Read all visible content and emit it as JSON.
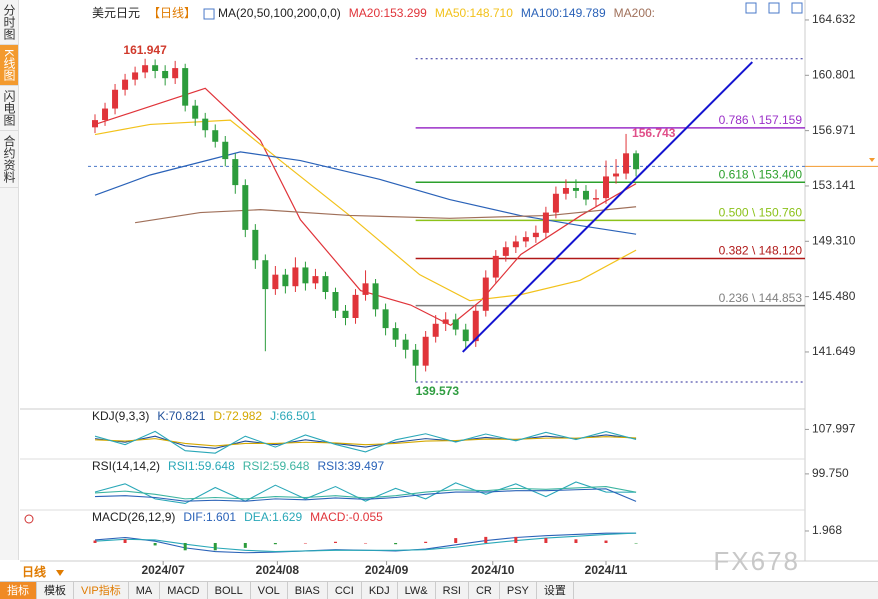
{
  "sidebar": [
    "分时图",
    "K线图",
    "闪电图",
    "合约资料"
  ],
  "period_button": "日线",
  "toolbar": [
    "指标",
    "模板",
    "VIP指标",
    "MA",
    "MACD",
    "BOLL",
    "VOL",
    "BIAS",
    "CCI",
    "KDJ",
    "LW&",
    "RSI",
    "CR",
    "PSY",
    "设置"
  ],
  "watermark": "FX678",
  "chart_data": [
    {
      "type": "candlestick",
      "title": "美元日元",
      "subtitle": "【日线】",
      "indicator": "MA(20,50,100,200,0,0)",
      "up_color": "#e0343a",
      "down_color": "#2c9c3c",
      "open": [
        157.2,
        157.7,
        158.5,
        159.8,
        160.5,
        161.0,
        161.5,
        161.1,
        160.6,
        161.3,
        158.7,
        157.8,
        157.0,
        156.2,
        155.0,
        153.2,
        150.1,
        148.0,
        146.0,
        147.0,
        146.2,
        147.5,
        146.4,
        146.9,
        145.8,
        144.5,
        144.0,
        145.6,
        146.4,
        144.6,
        143.3,
        142.5,
        141.8,
        140.7,
        142.7,
        143.6,
        143.9,
        143.2,
        142.4,
        144.5,
        146.8,
        148.3,
        148.9,
        149.3,
        149.6,
        149.9,
        151.3,
        152.6,
        153.0,
        152.8,
        152.2,
        152.3,
        153.8,
        154.0,
        155.4
      ],
      "high": [
        158.1,
        158.9,
        160.2,
        160.9,
        161.4,
        161.947,
        161.9,
        161.5,
        161.8,
        161.6,
        159.1,
        158.2,
        157.4,
        156.6,
        155.4,
        153.6,
        150.5,
        148.4,
        147.6,
        147.4,
        148.2,
        147.9,
        147.4,
        147.2,
        146.1,
        144.9,
        146.0,
        147.3,
        146.7,
        145.0,
        143.7,
        142.9,
        142.2,
        143.1,
        144.2,
        144.4,
        144.3,
        143.6,
        144.9,
        147.3,
        148.7,
        149.3,
        149.7,
        150.0,
        150.4,
        151.7,
        153.1,
        153.6,
        153.6,
        153.2,
        152.9,
        154.9,
        155.0,
        156.743,
        155.6
      ],
      "low": [
        156.8,
        157.3,
        158.1,
        159.4,
        160.1,
        160.6,
        160.6,
        160.1,
        160.2,
        158.3,
        157.3,
        156.5,
        155.8,
        154.5,
        152.6,
        149.6,
        147.4,
        141.7,
        145.6,
        145.7,
        145.8,
        145.9,
        146.0,
        145.3,
        144.0,
        143.5,
        143.6,
        145.2,
        144.1,
        142.8,
        142.0,
        141.2,
        139.573,
        140.3,
        142.3,
        143.1,
        142.8,
        141.9,
        142.0,
        144.1,
        146.4,
        147.9,
        148.5,
        148.9,
        149.2,
        149.5,
        150.9,
        152.2,
        152.3,
        151.8,
        151.7,
        151.9,
        153.3,
        153.6,
        153.8
      ],
      "close": [
        157.7,
        158.5,
        159.8,
        160.5,
        161.0,
        161.5,
        161.1,
        160.6,
        161.3,
        158.7,
        157.8,
        157.0,
        156.2,
        155.0,
        153.2,
        150.1,
        148.0,
        146.0,
        147.0,
        146.2,
        147.5,
        146.4,
        146.9,
        145.8,
        144.5,
        144.0,
        145.6,
        146.4,
        144.6,
        143.3,
        142.5,
        141.8,
        140.7,
        142.7,
        143.6,
        143.9,
        143.2,
        142.4,
        144.5,
        146.8,
        148.3,
        148.9,
        149.3,
        149.6,
        149.9,
        151.3,
        152.6,
        153.0,
        152.8,
        152.2,
        152.3,
        153.8,
        154.0,
        155.4,
        154.3
      ],
      "series": [
        {
          "name": "MA20:153.299",
          "color": "#e0343a",
          "x": [
            0,
            11,
            16.5,
            20.5,
            26.5,
            31.5,
            35.5,
            38.5,
            42.5,
            48.5,
            54
          ],
          "values": [
            157.4,
            159.9,
            156.3,
            150.8,
            145.9,
            144.9,
            143.5,
            145.2,
            148.4,
            151.1,
            153.3
          ]
        },
        {
          "name": "MA50:148.710",
          "color": "#f2c21b",
          "x": [
            0,
            5.5,
            13.5,
            18.5,
            25.4,
            32.4,
            37.4,
            42.4,
            48.4,
            54
          ],
          "values": [
            156.7,
            157.4,
            157.7,
            154.9,
            151.1,
            147.0,
            145.2,
            145.6,
            146.6,
            148.7
          ]
        },
        {
          "name": "MA100:149.789",
          "color": "#2a62b8",
          "x": [
            0,
            5.5,
            14.5,
            20.5,
            28.4,
            35.4,
            42.4,
            48.4,
            54
          ],
          "values": [
            152.5,
            153.9,
            155.5,
            154.9,
            153.6,
            152.2,
            151.1,
            150.4,
            149.8
          ]
        },
        {
          "name": "MA200:",
          "color": "#a0705a",
          "x": [
            4,
            10.5,
            16.5,
            25.4,
            35.4,
            45.4,
            54
          ],
          "values": [
            150.6,
            151.3,
            151.5,
            151.1,
            150.9,
            151.1,
            151.7
          ]
        }
      ],
      "xlim": [
        -0.7,
        70.86
      ],
      "xticks": [
        {
          "value": 6.8,
          "label": "2024/07"
        },
        {
          "value": 18.2,
          "label": "2024/08"
        },
        {
          "value": 29.1,
          "label": "2024/09"
        },
        {
          "value": 39.7,
          "label": "2024/10"
        },
        {
          "value": 51,
          "label": "2024/11"
        }
      ],
      "ylim": [
        137.77,
        165.46
      ],
      "yticks": [
        164.632,
        160.801,
        156.971,
        153.141,
        {
          "value": 149.31,
          "label": "149.310"
        },
        {
          "value": 145.48,
          "label": "145.480"
        },
        141.649
      ],
      "fib": {
        "from_x": 32,
        "bounds": [
          161.947,
          139.573
        ],
        "bounds_color": "#2a2a9a",
        "levels": [
          {
            "value": 157.159,
            "label": "0.786 \\ 157.159",
            "color": "#9b30c8"
          },
          {
            "value": 153.4,
            "label": "0.618 \\ 153.400",
            "color": "#2ca02c"
          },
          {
            "value": 150.76,
            "label": "0.500 \\ 150.760",
            "color": "#8cc21a"
          },
          {
            "value": 148.12,
            "label": "0.382 \\ 148.120",
            "color": "#b01818"
          },
          {
            "value": 144.853,
            "label": "0.236 \\ 144.853",
            "color": "#808080"
          }
        ]
      },
      "trendline": {
        "x": [
          36.7,
          65.6
        ],
        "y": [
          141.65,
          161.72
        ],
        "color": "#1414d0"
      },
      "current_price": 154.5,
      "annotations": [
        {
          "x": 5,
          "value": 161.947,
          "color": "#d0392b"
        },
        {
          "x": 32,
          "value": 139.573,
          "color": "#2e9d40"
        },
        {
          "x": 53,
          "value": 156.743,
          "color": "#e0508a"
        }
      ]
    },
    {
      "type": "line",
      "title": "KDJ(9,3,3)",
      "x": [
        0,
        3,
        6,
        9,
        12,
        15,
        18,
        21,
        24,
        27,
        30,
        33,
        36,
        39,
        42,
        45,
        48,
        51,
        54
      ],
      "ylim": [
        -10,
        184
      ],
      "yticks": [
        107.997
      ],
      "series": [
        {
          "name": "K:70.821",
          "color": "#1f4f9a",
          "values": [
            70,
            55,
            80,
            40,
            30,
            60,
            45,
            65,
            50,
            35,
            55,
            70,
            60,
            75,
            65,
            80,
            70,
            85,
            70.821
          ]
        },
        {
          "name": "D:72.982",
          "color": "#d4a800",
          "values": [
            65,
            60,
            70,
            50,
            40,
            50,
            50,
            55,
            52,
            45,
            50,
            60,
            62,
            68,
            67,
            72,
            72,
            78,
            72.982
          ]
        },
        {
          "name": "J:66.501",
          "color": "#2aa8b8",
          "values": [
            80,
            45,
            100,
            20,
            10,
            80,
            35,
            85,
            46,
            15,
            65,
            90,
            56,
            89,
            61,
            96,
            66,
            99,
            66.501
          ]
        }
      ]
    },
    {
      "type": "line",
      "title": "RSI(14,14,2)",
      "x": [
        0,
        3,
        6,
        9,
        12,
        15,
        18,
        21,
        24,
        27,
        30,
        33,
        36,
        39,
        42,
        45,
        48,
        51,
        54
      ],
      "ylim": [
        25,
        128
      ],
      "yticks": [
        {
          "value": 99.75,
          "label": "99.750"
        }
      ],
      "series": [
        {
          "name": "RSI1:59.648",
          "color": "#2aa8b8",
          "values": [
            60,
            78,
            45,
            35,
            70,
            40,
            75,
            45,
            72,
            40,
            68,
            45,
            80,
            55,
            78,
            50,
            82,
            60,
            59.648
          ]
        },
        {
          "name": "RSI2:59.648",
          "color": "#3cb4a0",
          "values": [
            58,
            62,
            55,
            45,
            48,
            45,
            50,
            48,
            52,
            47,
            52,
            60,
            65,
            63,
            68,
            66,
            69,
            72,
            59.648
          ]
        },
        {
          "name": "RSI3:39.497",
          "color": "#2a62b8",
          "values": [
            50,
            52,
            48,
            40,
            42,
            40,
            45,
            43,
            47,
            44,
            48,
            55,
            60,
            60,
            63,
            63,
            65,
            67,
            39.497
          ]
        }
      ]
    },
    {
      "type": "line",
      "title": "MACD(26,12,9)",
      "x": [
        0,
        3,
        6,
        9,
        12,
        15,
        18,
        21,
        24,
        27,
        30,
        33,
        36,
        39,
        42,
        45,
        48,
        51,
        54
      ],
      "ylim": [
        -2.79,
        5.08
      ],
      "yticks": [
        1.968
      ],
      "series": [
        {
          "name": "DIF:1.601",
          "color": "#2a62b8",
          "values": [
            0.5,
            0.9,
            0.3,
            -0.8,
            -1.4,
            -1.6,
            -1.5,
            -1.3,
            -1.1,
            -1.2,
            -1.3,
            -1.0,
            -0.3,
            0.4,
            0.9,
            1.2,
            1.4,
            1.6,
            1.601
          ]
        },
        {
          "name": "DEA:1.629",
          "color": "#2aa8b8",
          "values": [
            0.3,
            0.6,
            0.5,
            -0.2,
            -0.8,
            -1.2,
            -1.4,
            -1.3,
            -1.2,
            -1.2,
            -1.2,
            -1.1,
            -0.7,
            -0.1,
            0.4,
            0.8,
            1.1,
            1.4,
            1.629
          ]
        },
        {
          "name": "MACD:-0.055",
          "color": "#e0343a",
          "negative_color": "#2c9c3c",
          "style": "bar",
          "values": [
            0.4,
            0.6,
            -0.4,
            -1.2,
            -1.2,
            -0.8,
            -0.2,
            0,
            0.2,
            0,
            -0.2,
            0.2,
            0.8,
            1.0,
            1.0,
            0.8,
            0.6,
            0.4,
            -0.055
          ]
        }
      ]
    }
  ]
}
